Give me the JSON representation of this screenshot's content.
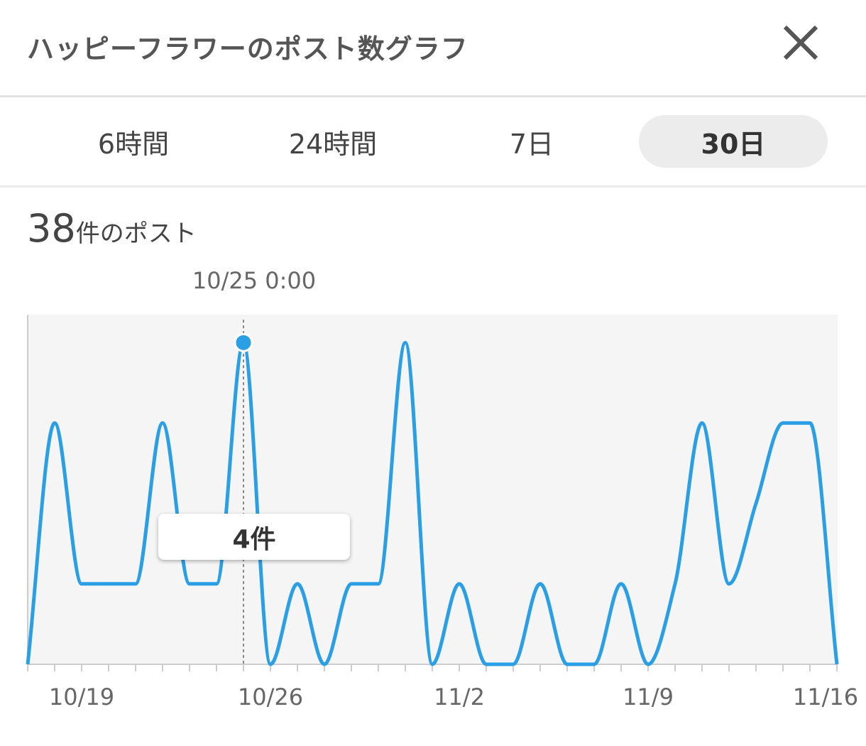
{
  "header": {
    "title": "ハッピーフラワーのポスト数グラフ",
    "close_icon": "close-icon"
  },
  "tabs": [
    {
      "label": "6時間",
      "selected": false
    },
    {
      "label": "24時間",
      "selected": false
    },
    {
      "label": "7日",
      "selected": false
    },
    {
      "label": "30日",
      "selected": true
    }
  ],
  "summary": {
    "count": "38",
    "suffix": "件のポスト"
  },
  "tooltip": {
    "time": "10/25 0:00",
    "value_label": "4件"
  },
  "chart_data": {
    "type": "line",
    "x": [
      "10/17",
      "10/18",
      "10/19",
      "10/20",
      "10/21",
      "10/22",
      "10/23",
      "10/24",
      "10/25",
      "10/26",
      "10/27",
      "10/28",
      "10/29",
      "10/30",
      "10/31",
      "11/1",
      "11/2",
      "11/3",
      "11/4",
      "11/5",
      "11/6",
      "11/7",
      "11/8",
      "11/9",
      "11/10",
      "11/11",
      "11/12",
      "11/13",
      "11/14",
      "11/15",
      "11/16"
    ],
    "values": [
      0,
      3,
      1,
      1,
      1,
      3,
      1,
      1,
      4,
      0,
      1,
      0,
      1,
      1,
      4,
      0,
      1,
      0,
      0,
      1,
      0,
      0,
      1,
      0,
      1,
      3,
      1,
      2,
      3,
      3,
      0
    ],
    "x_tick_labels": [
      "10/19",
      "10/26",
      "11/2",
      "11/9",
      "11/16"
    ],
    "highlighted_point": "10/25",
    "ylim": [
      0,
      4.7
    ],
    "line_color": "#2b9fe6",
    "grid": false
  }
}
